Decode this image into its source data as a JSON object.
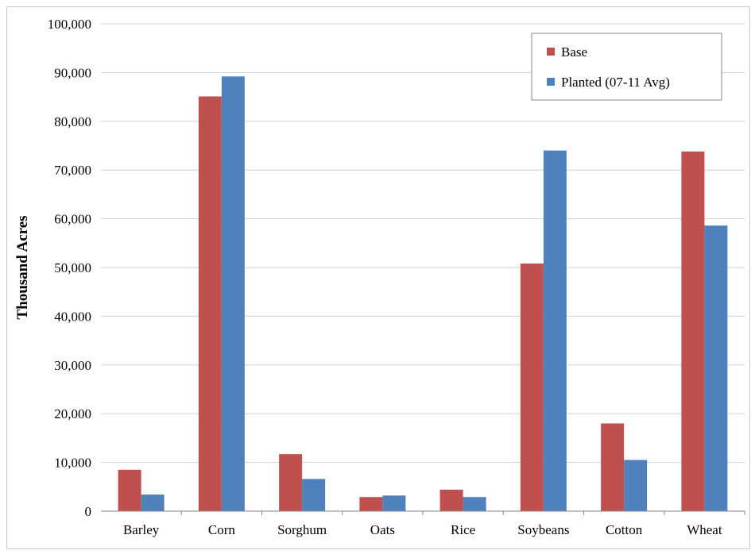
{
  "chart_data": {
    "type": "bar",
    "title": "",
    "xlabel": "",
    "ylabel": "Thousand Acres",
    "ylim": [
      0,
      100000
    ],
    "y_ticks": [
      "0",
      "10,000",
      "20,000",
      "30,000",
      "40,000",
      "50,000",
      "60,000",
      "70,000",
      "80,000",
      "90,000",
      "100,000"
    ],
    "categories": [
      "Barley",
      "Corn",
      "Sorghum",
      "Oats",
      "Rice",
      "Soybeans",
      "Cotton",
      "Wheat"
    ],
    "series": [
      {
        "name": "Base",
        "color": "#c0504d",
        "values": [
          8500,
          85100,
          11700,
          2900,
          4400,
          50800,
          18000,
          73800
        ]
      },
      {
        "name": "Planted (07-11 Avg)",
        "color": "#4f81bd",
        "values": [
          3400,
          89200,
          6600,
          3200,
          2900,
          74000,
          10500,
          58600
        ]
      }
    ],
    "grid": true,
    "legend_position": "top-right"
  }
}
